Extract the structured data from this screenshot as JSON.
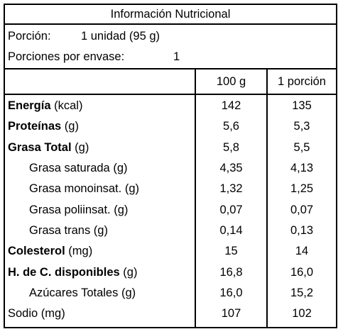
{
  "title": "Información Nutricional",
  "serving": {
    "portion_label": "Porción:",
    "portion_value": "1 unidad (95 g)",
    "servings_label": "Porciones por envase:",
    "servings_value": "1"
  },
  "columns": {
    "per_100g": "100 g",
    "per_portion": "1 porción"
  },
  "nutrients": [
    {
      "name": "Energía",
      "unit": " (kcal)",
      "bold": true,
      "indent": false,
      "per_100g": "142",
      "per_portion": "135"
    },
    {
      "name": "Proteínas",
      "unit": " (g)",
      "bold": true,
      "indent": false,
      "per_100g": "5,6",
      "per_portion": "5,3"
    },
    {
      "name": "Grasa Total",
      "unit": " (g)",
      "bold": true,
      "indent": false,
      "per_100g": "5,8",
      "per_portion": "5,5"
    },
    {
      "name": "Grasa saturada",
      "unit": " (g)",
      "bold": false,
      "indent": true,
      "per_100g": "4,35",
      "per_portion": "4,13"
    },
    {
      "name": "Grasa monoinsat.",
      "unit": " (g)",
      "bold": false,
      "indent": true,
      "per_100g": "1,32",
      "per_portion": "1,25"
    },
    {
      "name": "Grasa poliinsat.",
      "unit": " (g)",
      "bold": false,
      "indent": true,
      "per_100g": "0,07",
      "per_portion": "0,07"
    },
    {
      "name": "Grasa trans",
      "unit": " (g)",
      "bold": false,
      "indent": true,
      "per_100g": "0,14",
      "per_portion": "0,13"
    },
    {
      "name": "Colesterol",
      "unit": " (mg)",
      "bold": true,
      "indent": false,
      "per_100g": "15",
      "per_portion": "14"
    },
    {
      "name": "H. de C. disponibles",
      "unit": " (g)",
      "bold": true,
      "indent": false,
      "per_100g": "16,8",
      "per_portion": "16,0"
    },
    {
      "name": "Azúcares Totales",
      "unit": " (g)",
      "bold": false,
      "indent": true,
      "per_100g": "16,0",
      "per_portion": "15,2"
    },
    {
      "name": "Sodio",
      "unit": " (mg)",
      "bold": false,
      "indent": false,
      "per_100g": "107",
      "per_portion": "102"
    }
  ]
}
